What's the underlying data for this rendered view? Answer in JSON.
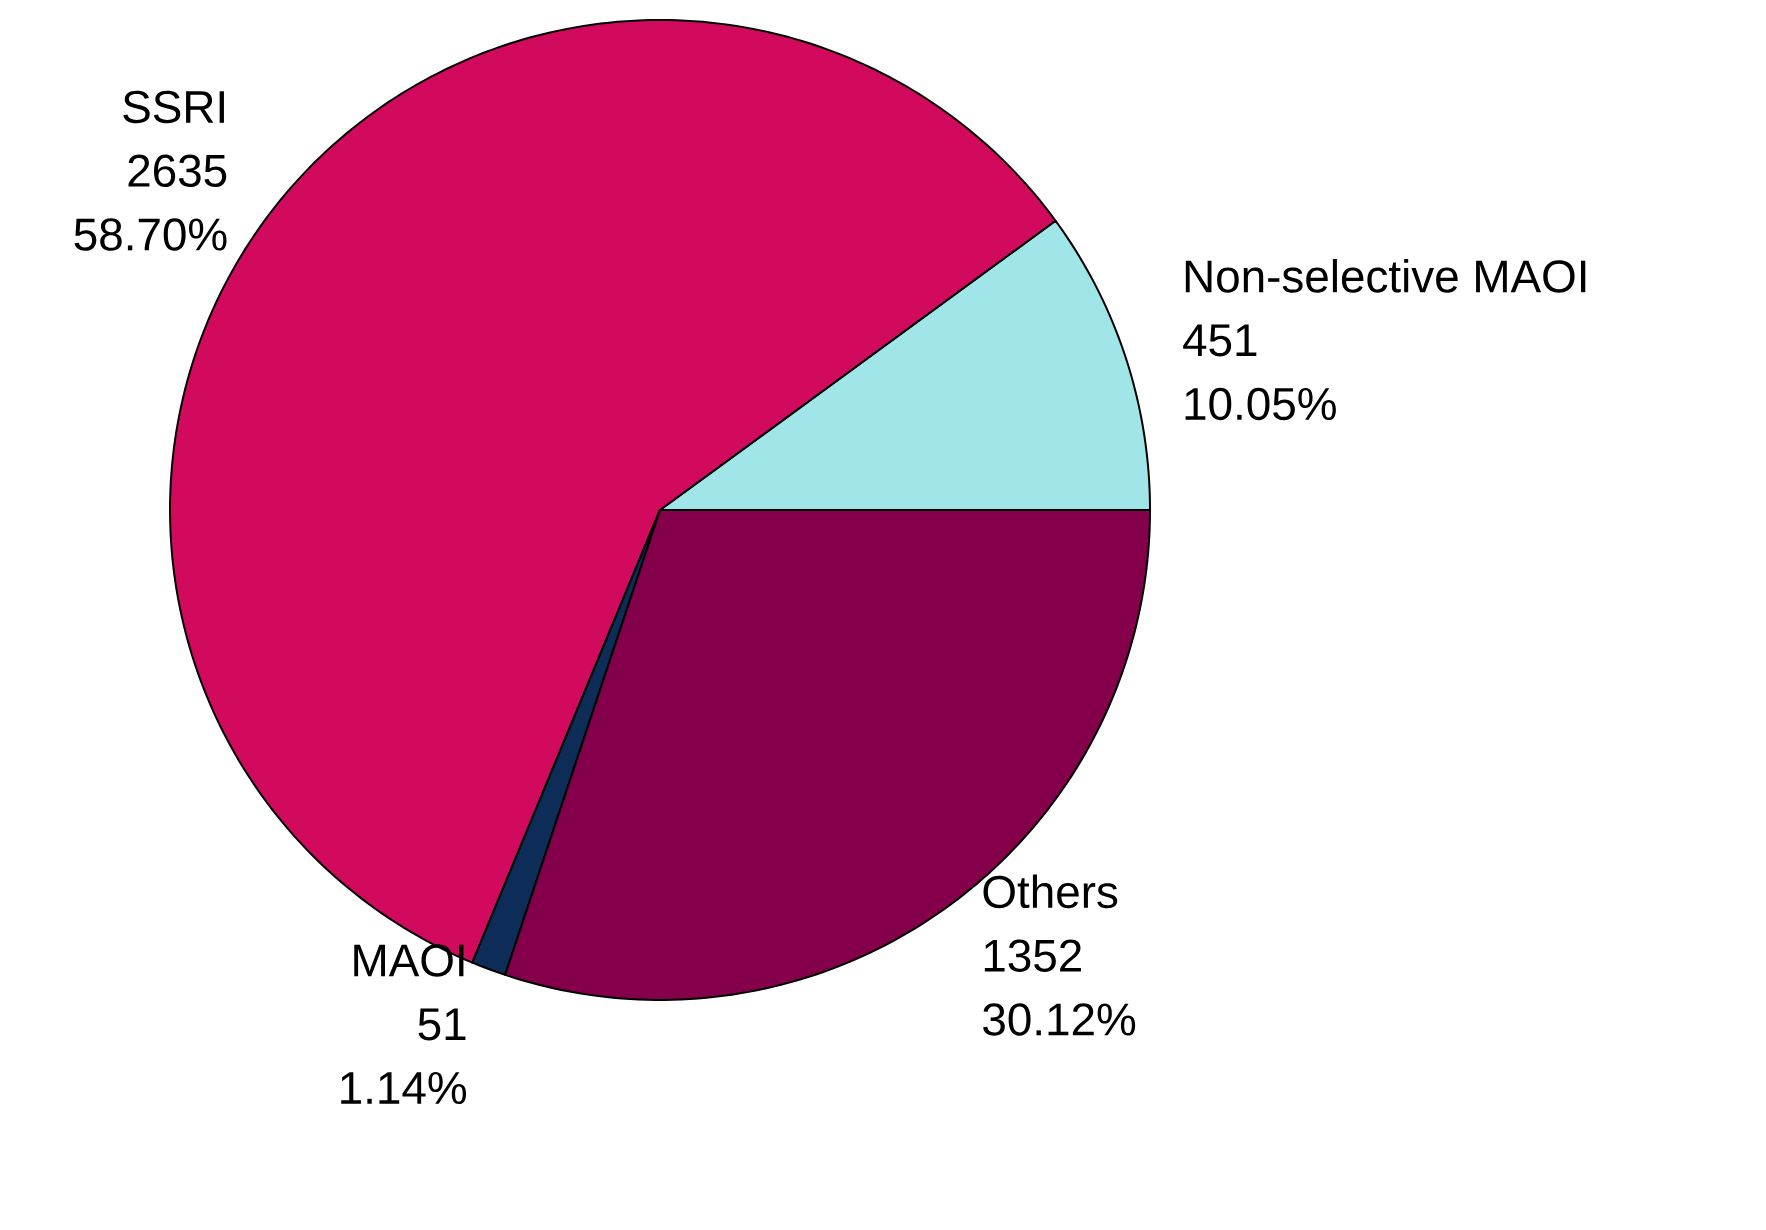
{
  "chart_data": {
    "type": "pie",
    "categories": [
      "Non-selective MAOI",
      "SSRI",
      "MAOI",
      "Others"
    ],
    "values": [
      10.05,
      58.7,
      1.14,
      30.12
    ],
    "value_labels": [
      "10.05%",
      "58.70%",
      "1.14%",
      "30.12%"
    ],
    "annotations": [
      "451",
      "2635",
      "51",
      "1352"
    ],
    "colors": [
      "#a0e6e8",
      "#d20a5e",
      "#0d2c57",
      "#85004b"
    ]
  }
}
